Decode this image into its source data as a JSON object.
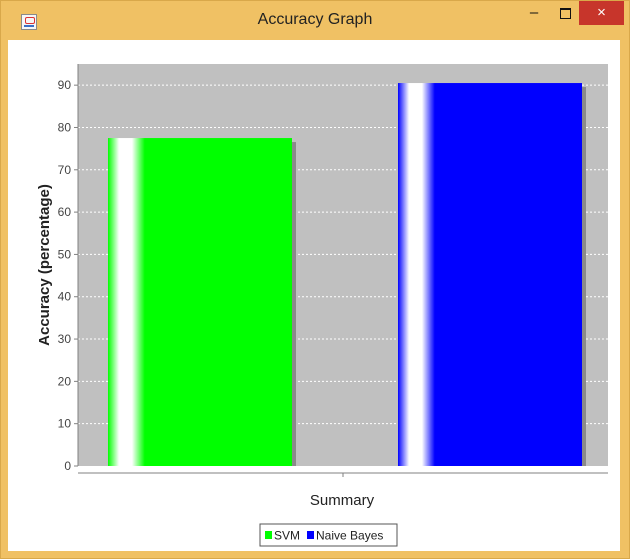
{
  "window": {
    "title": "Accuracy Graph",
    "minimize_glyph": "–",
    "close_glyph": "×",
    "frame_color": "#f0c164",
    "close_color": "#c7352b"
  },
  "chart_data": {
    "type": "bar",
    "categories": [
      "Summary"
    ],
    "series": [
      {
        "name": "SVM",
        "values": [
          77.5
        ],
        "color": "#00ff00"
      },
      {
        "name": "Naive Bayes",
        "values": [
          90.5
        ],
        "color": "#0000ff"
      }
    ],
    "title": "",
    "xlabel": "Summary",
    "ylabel": "Accuracy (percentage)",
    "ylim": [
      0,
      95
    ],
    "yticks": [
      0,
      10,
      20,
      30,
      40,
      50,
      60,
      70,
      80,
      90
    ],
    "grid": true,
    "plot_background": "#c0c0c0",
    "legend": "bottom-center"
  }
}
